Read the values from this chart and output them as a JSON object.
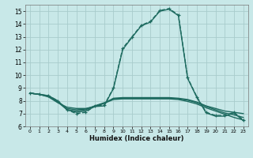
{
  "xlabel": "Humidex (Indice chaleur)",
  "background_color": "#c8e8e8",
  "grid_color": "#a8cccc",
  "line_color": "#1e6b60",
  "xlim": [
    -0.5,
    23.5
  ],
  "ylim": [
    6,
    15.5
  ],
  "yticks": [
    6,
    7,
    8,
    9,
    10,
    11,
    12,
    13,
    14,
    15
  ],
  "xticks": [
    0,
    1,
    2,
    3,
    4,
    5,
    6,
    7,
    8,
    9,
    10,
    11,
    12,
    13,
    14,
    15,
    16,
    17,
    18,
    19,
    20,
    21,
    22,
    23
  ],
  "series": [
    {
      "x": [
        0,
        1,
        2,
        3,
        4,
        5,
        6,
        7,
        8,
        9,
        10,
        11,
        12,
        13,
        14,
        15,
        16,
        17,
        18,
        19,
        20,
        21,
        22,
        23
      ],
      "y": [
        8.6,
        8.5,
        8.4,
        8.0,
        7.3,
        7.0,
        7.1,
        7.6,
        7.65,
        9.0,
        12.1,
        13.0,
        13.9,
        14.2,
        15.05,
        15.2,
        14.7,
        9.8,
        8.3,
        7.1,
        6.85,
        6.85,
        7.1,
        6.5
      ],
      "marker": "+",
      "linestyle": "--",
      "lw": 1.0
    },
    {
      "x": [
        0,
        1,
        2,
        3,
        4,
        5,
        6,
        7,
        8,
        9,
        10,
        11,
        12,
        13,
        14,
        15,
        16,
        17,
        18,
        19,
        20,
        21,
        22,
        23
      ],
      "y": [
        8.6,
        8.5,
        8.4,
        8.0,
        7.3,
        7.1,
        7.2,
        7.55,
        7.6,
        8.95,
        12.0,
        12.95,
        13.85,
        14.15,
        15.0,
        15.15,
        14.65,
        9.75,
        8.25,
        7.05,
        6.8,
        6.8,
        7.05,
        6.45
      ],
      "marker": null,
      "linestyle": "-",
      "lw": 1.0
    },
    {
      "x": [
        0,
        1,
        2,
        3,
        4,
        5,
        6,
        7,
        8,
        9,
        10,
        11,
        12,
        13,
        14,
        15,
        16,
        17,
        18,
        19,
        20,
        21,
        22,
        23
      ],
      "y": [
        8.6,
        8.5,
        8.35,
        7.9,
        7.3,
        7.2,
        7.3,
        7.6,
        7.8,
        8.2,
        8.25,
        8.25,
        8.25,
        8.25,
        8.25,
        8.25,
        8.2,
        8.1,
        7.9,
        7.6,
        7.4,
        7.2,
        7.1,
        7.0
      ],
      "marker": null,
      "linestyle": "-",
      "lw": 1.0
    },
    {
      "x": [
        0,
        1,
        2,
        3,
        4,
        5,
        6,
        7,
        8,
        9,
        10,
        11,
        12,
        13,
        14,
        15,
        16,
        17,
        18,
        19,
        20,
        21,
        22,
        23
      ],
      "y": [
        8.6,
        8.5,
        8.35,
        7.95,
        7.4,
        7.3,
        7.35,
        7.6,
        7.85,
        8.15,
        8.2,
        8.2,
        8.2,
        8.2,
        8.2,
        8.2,
        8.15,
        8.05,
        7.85,
        7.55,
        7.3,
        7.05,
        6.9,
        6.7
      ],
      "marker": null,
      "linestyle": "-",
      "lw": 1.0
    },
    {
      "x": [
        0,
        1,
        2,
        3,
        4,
        5,
        6,
        7,
        8,
        9,
        10,
        11,
        12,
        13,
        14,
        15,
        16,
        17,
        18,
        19,
        20,
        21,
        22,
        23
      ],
      "y": [
        8.6,
        8.5,
        8.3,
        7.85,
        7.5,
        7.4,
        7.4,
        7.55,
        7.8,
        8.1,
        8.15,
        8.15,
        8.15,
        8.15,
        8.15,
        8.15,
        8.1,
        7.95,
        7.75,
        7.45,
        7.2,
        6.95,
        6.7,
        6.5
      ],
      "marker": null,
      "linestyle": "-",
      "lw": 1.0
    }
  ]
}
